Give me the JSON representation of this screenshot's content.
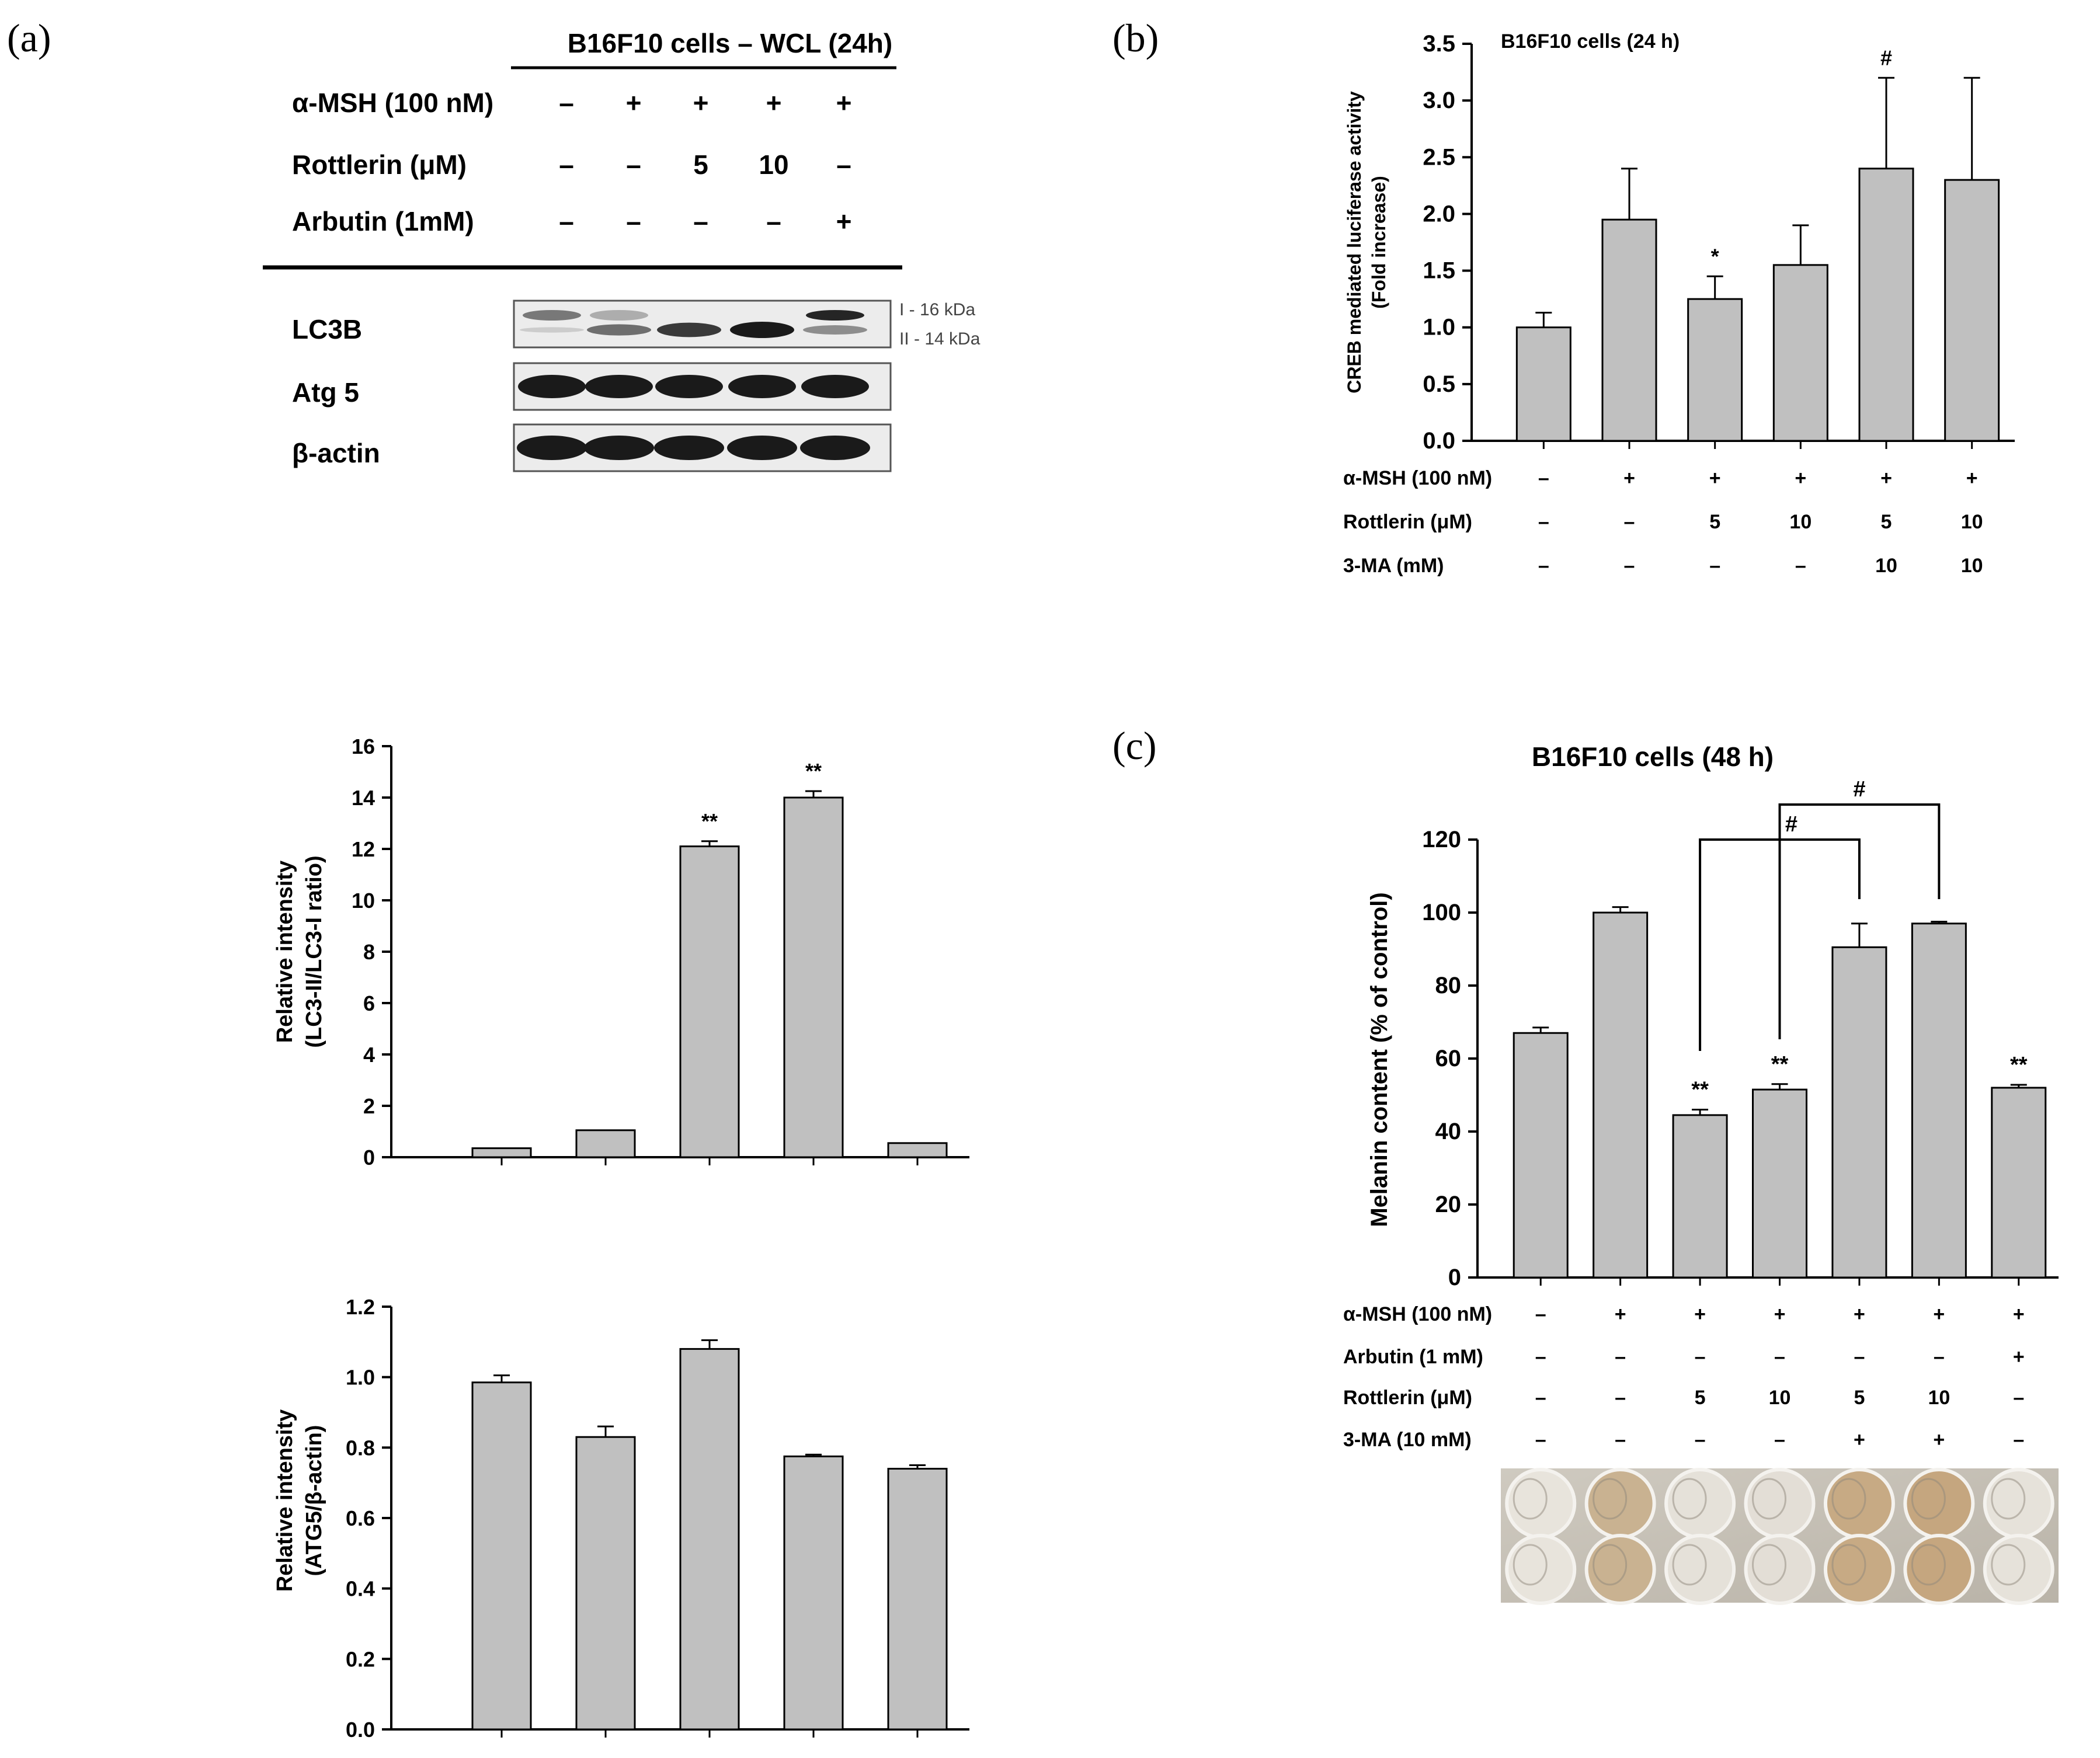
{
  "panel_labels": [
    "(a)",
    "(b)",
    "(c)"
  ],
  "blot": {
    "title": "B16F10 cells – WCL (24h)",
    "conditions": [
      {
        "label": "α-MSH (100 nM)",
        "values": [
          "–",
          "+",
          "+",
          "+",
          "+"
        ]
      },
      {
        "label": "Rottlerin (μM)",
        "values": [
          "–",
          "–",
          "5",
          "10",
          "–"
        ]
      },
      {
        "label": "Arbutin (1mM)",
        "values": [
          "–",
          "–",
          "–",
          "–",
          "+"
        ]
      }
    ],
    "rows": [
      {
        "label": "LC3B"
      },
      {
        "label": "Atg 5"
      },
      {
        "label": "β-actin"
      }
    ],
    "band_annotations": [
      "I - 16 kDa",
      "II - 14 kDa"
    ],
    "colors": {
      "band": "#1a1a1a",
      "membrane": "#ebebeb"
    }
  },
  "bar_color": "#c0c0c0",
  "chart_data": [
    {
      "id": "a_lc3",
      "type": "bar",
      "title": "",
      "ylabel": "Relative intensity\n(LC3-II/LC3-I ratio)",
      "ylabel_lines": [
        "Relative intensity",
        "(LC3-II/LC3-I ratio)"
      ],
      "ylim": [
        0,
        16
      ],
      "yticks": [
        "0",
        "2",
        "4",
        "6",
        "8",
        "10",
        "12",
        "14",
        "16"
      ],
      "values": [
        0.35,
        1.05,
        12.1,
        14.0,
        0.55
      ],
      "errors": [
        0,
        0,
        0.2,
        0.25,
        0
      ],
      "significance": [
        "",
        "",
        "**",
        "**",
        ""
      ]
    },
    {
      "id": "a_atg5",
      "type": "bar",
      "title": "",
      "ylabel_lines": [
        "Relative intensity",
        "(ATG5/β-actin)"
      ],
      "ylim": [
        0,
        1.2
      ],
      "yticks": [
        "0.0",
        "0.2",
        "0.4",
        "0.6",
        "0.8",
        "1.0",
        "1.2"
      ],
      "values": [
        0.985,
        0.83,
        1.08,
        0.775,
        0.74
      ],
      "errors": [
        0.02,
        0.03,
        0.025,
        0.005,
        0.01
      ],
      "significance": [
        "",
        "",
        "",
        "",
        ""
      ]
    },
    {
      "id": "b_creb",
      "type": "bar",
      "title": "B16F10 cells (24 h)",
      "ylabel_lines": [
        "CREB mediated luciferase activity",
        "(Fold increase)"
      ],
      "ylim": [
        0,
        3.5
      ],
      "yticks": [
        "0.0",
        "0.5",
        "1.0",
        "1.5",
        "2.0",
        "2.5",
        "3.0",
        "3.5"
      ],
      "values": [
        1.0,
        1.95,
        1.25,
        1.55,
        2.4,
        2.3
      ],
      "errors": [
        0.13,
        0.45,
        0.2,
        0.35,
        0.8,
        0.9
      ],
      "significance": [
        "",
        "",
        "*",
        "",
        "#",
        ""
      ],
      "conditions": [
        {
          "label": "α-MSH (100 nM)",
          "values": [
            "–",
            "+",
            "+",
            "+",
            "+",
            "+"
          ]
        },
        {
          "label": "Rottlerin (μM)",
          "values": [
            "–",
            "–",
            "5",
            "10",
            "5",
            "10"
          ]
        },
        {
          "label": "3-MA (mM)",
          "values": [
            "–",
            "–",
            "–",
            "–",
            "10",
            "10"
          ]
        }
      ]
    },
    {
      "id": "c_melanin",
      "type": "bar",
      "title": "B16F10 cells (48 h)",
      "ylabel_lines": [
        "Melanin content (% of control)"
      ],
      "ylim": [
        0,
        120
      ],
      "yticks": [
        "0",
        "20",
        "40",
        "60",
        "80",
        "100",
        "120"
      ],
      "values": [
        67,
        100,
        44.5,
        51.5,
        90.5,
        97,
        52
      ],
      "errors": [
        1.5,
        1.5,
        1.5,
        1.5,
        6.5,
        0.5,
        0.8
      ],
      "significance": [
        "",
        "",
        "**",
        "**",
        "",
        "",
        "**"
      ],
      "brackets": [
        {
          "from": 3,
          "to": 5,
          "label": "#"
        },
        {
          "from": 4,
          "to": 6,
          "label": "#"
        }
      ],
      "conditions": [
        {
          "label": "α-MSH (100 nM)",
          "values": [
            "–",
            "+",
            "+",
            "+",
            "+",
            "+",
            "+"
          ]
        },
        {
          "label": "Arbutin (1 mM)",
          "values": [
            "–",
            "–",
            "–",
            "–",
            "–",
            "–",
            "+"
          ]
        },
        {
          "label": "Rottlerin (μM)",
          "values": [
            "–",
            "–",
            "5",
            "10",
            "5",
            "10",
            "–"
          ]
        },
        {
          "label": "3-MA (10 mM)",
          "values": [
            "–",
            "–",
            "–",
            "–",
            "+",
            "+",
            "–"
          ]
        }
      ],
      "well_colors": [
        "#e8e4dc",
        "#c9b291",
        "#e5e1d9",
        "#e3ded6",
        "#c7aa84",
        "#c5a67f",
        "#e6e2da"
      ]
    }
  ]
}
